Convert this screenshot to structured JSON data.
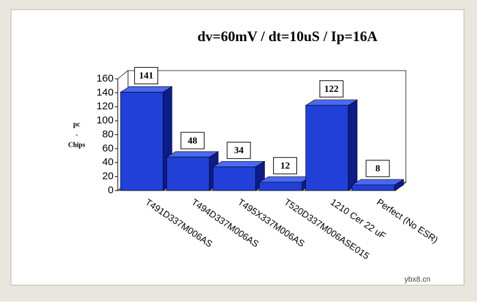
{
  "chart_data": {
    "type": "bar3d",
    "title": "dv=60mV / dt=10uS / Ip=16A",
    "y_label_lines": [
      "pc",
      "-",
      "Chips"
    ],
    "categories": [
      "T491D337M006AS",
      "T494D337M006AS",
      "T495X337M006AS",
      "T520D337M006ASE015",
      "1210 Cer 22 uF",
      "Perfect (No ESR)"
    ],
    "values": [
      141,
      48,
      34,
      12,
      122,
      8
    ],
    "color": "#2040d8",
    "ylim": [
      0,
      160
    ],
    "yticks": [
      0,
      20,
      40,
      60,
      80,
      100,
      120,
      140,
      160
    ],
    "watermark": "ybx8.cn"
  }
}
